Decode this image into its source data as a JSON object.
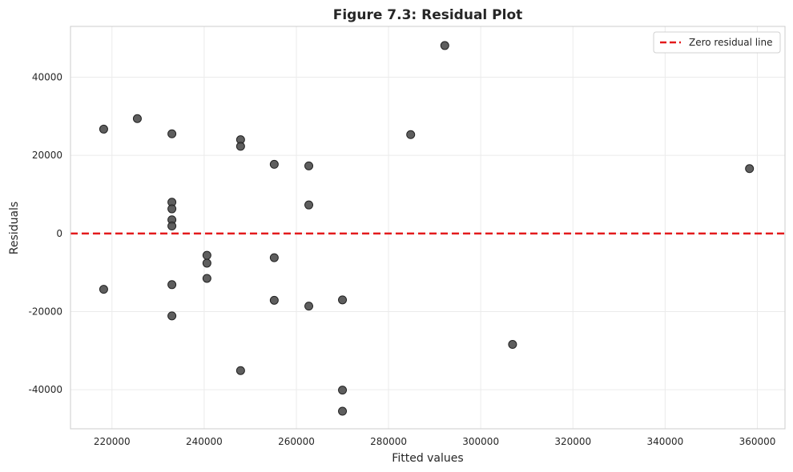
{
  "chart_data": {
    "type": "scatter",
    "title": "Figure 7.3: Residual Plot",
    "xlabel": "Fitted values",
    "ylabel": "Residuals",
    "xlim": [
      211000,
      366000
    ],
    "ylim": [
      -50000,
      53000
    ],
    "xticks": [
      220000,
      240000,
      260000,
      280000,
      300000,
      320000,
      340000,
      360000
    ],
    "yticks": [
      -40000,
      -20000,
      0,
      20000,
      40000
    ],
    "grid": true,
    "legend_position": "top-right",
    "reference_line": {
      "label": "Zero residual line",
      "y": 0,
      "color": "#e31a1c",
      "style": "dashed"
    },
    "point_color": "#4d4d4d",
    "series": [
      {
        "points": [
          [
            218200,
            26700
          ],
          [
            218200,
            -14300
          ],
          [
            225500,
            29400
          ],
          [
            233000,
            25500
          ],
          [
            233000,
            8000
          ],
          [
            233000,
            6300
          ],
          [
            233000,
            3500
          ],
          [
            233000,
            1900
          ],
          [
            233000,
            -13100
          ],
          [
            233000,
            -21100
          ],
          [
            240600,
            -5600
          ],
          [
            240600,
            -7600
          ],
          [
            240600,
            -11500
          ],
          [
            247900,
            24000
          ],
          [
            247900,
            22300
          ],
          [
            247900,
            -35100
          ],
          [
            255200,
            17700
          ],
          [
            255200,
            -6200
          ],
          [
            255200,
            -17100
          ],
          [
            262700,
            17300
          ],
          [
            262700,
            7300
          ],
          [
            262700,
            -18600
          ],
          [
            270000,
            -17000
          ],
          [
            270000,
            -40100
          ],
          [
            270000,
            -45500
          ],
          [
            284800,
            25300
          ],
          [
            292200,
            48100
          ],
          [
            306900,
            -28400
          ],
          [
            358300,
            16600
          ]
        ]
      }
    ]
  }
}
